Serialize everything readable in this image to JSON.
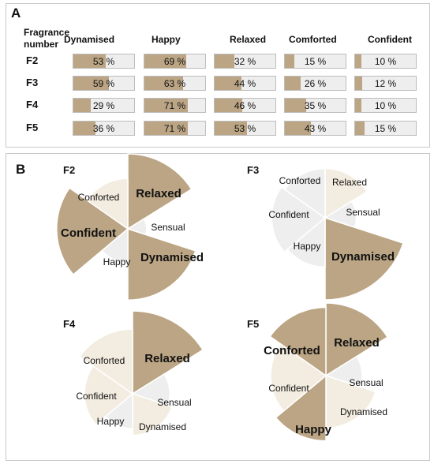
{
  "panel_a": {
    "letter": "A",
    "header_label": "Fragrance number",
    "header_label_lines": [
      "Fragrance",
      "number"
    ],
    "columns": [
      "Dynamised",
      "Happy",
      "Relaxed",
      "Comforted",
      "Confident"
    ],
    "rows": [
      {
        "name": "F2",
        "values": [
          53,
          69,
          32,
          15,
          10
        ],
        "labels": [
          "53 %",
          "69 %",
          "32 %",
          "15 %",
          "10 %"
        ]
      },
      {
        "name": "F3",
        "values": [
          59,
          63,
          44,
          26,
          12
        ],
        "labels": [
          "59 %",
          "63 %",
          "44 %",
          "26 %",
          "12 %"
        ]
      },
      {
        "name": "F4",
        "values": [
          29,
          71,
          46,
          35,
          10
        ],
        "labels": [
          "29 %",
          "71 %",
          "46 %",
          "35 %",
          "10 %"
        ]
      },
      {
        "name": "F5",
        "values": [
          36,
          71,
          53,
          43,
          15
        ],
        "labels": [
          "36 %",
          "71 %",
          "53 %",
          "43 %",
          "15 %"
        ]
      }
    ]
  },
  "panel_b": {
    "letter": "B"
  },
  "chart_data": [
    {
      "type": "bar",
      "categories": [
        "Dynamised",
        "Happy",
        "Relaxed",
        "Comforted",
        "Confident"
      ],
      "series": [
        {
          "name": "F2",
          "values": [
            53,
            69,
            32,
            15,
            10
          ]
        },
        {
          "name": "F3",
          "values": [
            59,
            63,
            44,
            26,
            12
          ]
        },
        {
          "name": "F4",
          "values": [
            29,
            71,
            46,
            35,
            10
          ]
        },
        {
          "name": "F5",
          "values": [
            36,
            71,
            53,
            43,
            15
          ]
        }
      ],
      "ylim": [
        0,
        100
      ]
    },
    {
      "type": "pie",
      "subtype": "polar-area",
      "charts": [
        {
          "name": "F2",
          "slices": [
            {
              "label": "Relaxed",
              "value": 1.0,
              "color": "#bba584",
              "emphasis": "bold"
            },
            {
              "label": "Sensual",
              "value": 0.25,
              "color": "#eeeeee",
              "emphasis": "normal"
            },
            {
              "label": "Dynamised",
              "value": 0.95,
              "color": "#bba584",
              "emphasis": "bold"
            },
            {
              "label": "Happy",
              "value": 0.45,
              "color": "#eeeeee",
              "emphasis": "normal"
            },
            {
              "label": "Confident",
              "value": 0.95,
              "color": "#bba584",
              "emphasis": "bold"
            },
            {
              "label": "Conforted",
              "value": 0.67,
              "color": "#f3ece0",
              "emphasis": "normal"
            }
          ]
        },
        {
          "name": "F3",
          "slices": [
            {
              "label": "Relaxed",
              "value": 0.6,
              "color": "#f3ece0",
              "emphasis": "normal"
            },
            {
              "label": "Sensual",
              "value": 0.38,
              "color": "#eeeeee",
              "emphasis": "normal"
            },
            {
              "label": "Dynamised",
              "value": 1.0,
              "color": "#bba584",
              "emphasis": "bold"
            },
            {
              "label": "Happy",
              "value": 0.6,
              "color": "#eeeeee",
              "emphasis": "normal"
            },
            {
              "label": "Confident",
              "value": 0.65,
              "color": "#eeeeee",
              "emphasis": "normal"
            },
            {
              "label": "Conforted",
              "value": 0.6,
              "color": "#eeeeee",
              "emphasis": "normal"
            }
          ]
        },
        {
          "name": "F4",
          "slices": [
            {
              "label": "Relaxed",
              "value": 1.0,
              "color": "#bba584",
              "emphasis": "bold"
            },
            {
              "label": "Sensual",
              "value": 0.45,
              "color": "#eeeeee",
              "emphasis": "normal"
            },
            {
              "label": "Dynamised",
              "value": 0.5,
              "color": "#f3ece0",
              "emphasis": "normal"
            },
            {
              "label": "Happy",
              "value": 0.42,
              "color": "#eeeeee",
              "emphasis": "normal"
            },
            {
              "label": "Confident",
              "value": 0.58,
              "color": "#f3ece0",
              "emphasis": "normal"
            },
            {
              "label": "Conforted",
              "value": 0.78,
              "color": "#f3ece0",
              "emphasis": "normal"
            }
          ]
        },
        {
          "name": "F5",
          "slices": [
            {
              "label": "Relaxed",
              "value": 1.0,
              "color": "#bba584",
              "emphasis": "bold"
            },
            {
              "label": "Sensual",
              "value": 0.5,
              "color": "#eeeeee",
              "emphasis": "normal"
            },
            {
              "label": "Dynamised",
              "value": 0.72,
              "color": "#f3ece0",
              "emphasis": "normal"
            },
            {
              "label": "Happy",
              "value": 0.9,
              "color": "#bba584",
              "emphasis": "bold"
            },
            {
              "label": "Confident",
              "value": 0.76,
              "color": "#f3ece0",
              "emphasis": "normal"
            },
            {
              "label": "Conforted",
              "value": 0.94,
              "color": "#bba584",
              "emphasis": "bold"
            }
          ]
        }
      ]
    }
  ]
}
